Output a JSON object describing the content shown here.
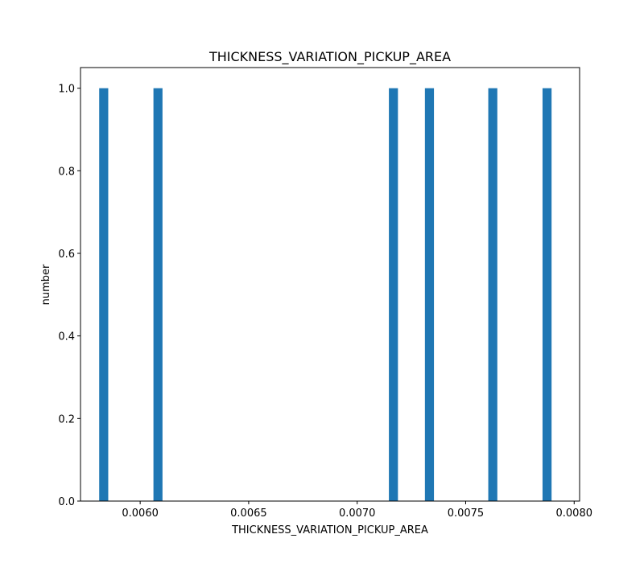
{
  "chart_data": {
    "type": "bar",
    "title": "THICKNESS_VARIATION_PICKUP_AREA",
    "xlabel": "THICKNESS_VARIATION_PICKUP_AREA",
    "ylabel": "number",
    "xlim": [
      0.005725,
      0.008025
    ],
    "ylim": [
      0,
      1.05
    ],
    "x_ticks": [
      0.006,
      0.0065,
      0.007,
      0.0075,
      0.008
    ],
    "x_tick_labels": [
      "0.0060",
      "0.0065",
      "0.0070",
      "0.0075",
      "0.0080"
    ],
    "y_ticks": [
      0.0,
      0.2,
      0.4,
      0.6,
      0.8,
      1.0
    ],
    "y_tick_labels": [
      "0.0",
      "0.2",
      "0.4",
      "0.6",
      "0.8",
      "1.0"
    ],
    "bar_width": 4.17e-05,
    "bars": [
      {
        "x": 0.005832,
        "value": 1
      },
      {
        "x": 0.006082,
        "value": 1
      },
      {
        "x": 0.007167,
        "value": 1
      },
      {
        "x": 0.007333,
        "value": 1
      },
      {
        "x": 0.007625,
        "value": 1
      },
      {
        "x": 0.007875,
        "value": 1
      }
    ],
    "bar_color": "#1f77b4",
    "grid": false
  }
}
